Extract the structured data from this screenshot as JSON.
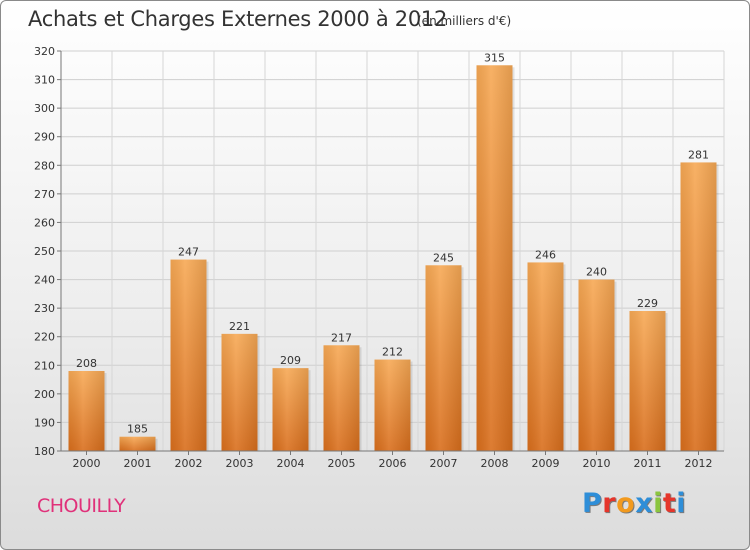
{
  "header": {
    "title": "Achats et Charges Externes 2000 à 2012",
    "subtitle": "(en milliers d'€)"
  },
  "footer": {
    "town": "CHOUILLY",
    "logo_letters": [
      "P",
      "r",
      "o",
      "x",
      "i",
      "t",
      "i"
    ],
    "logo_colors": [
      "#2e8ed8",
      "#e5352b",
      "#f29a1e",
      "#2e8ed8",
      "#8bc53f",
      "#e5352b",
      "#2e8ed8"
    ]
  },
  "chart_data": {
    "type": "bar",
    "categories": [
      "2000",
      "2001",
      "2002",
      "2003",
      "2004",
      "2005",
      "2006",
      "2007",
      "2008",
      "2009",
      "2010",
      "2011",
      "2012"
    ],
    "values": [
      208,
      185,
      247,
      221,
      209,
      217,
      212,
      245,
      315,
      246,
      240,
      229,
      281
    ],
    "title": "Achats et Charges Externes 2000 à 2012",
    "subtitle": "(en milliers d'€)",
    "ylim": [
      180,
      320
    ],
    "yticks": [
      180,
      190,
      200,
      210,
      220,
      230,
      240,
      250,
      260,
      270,
      280,
      290,
      300,
      310,
      320
    ],
    "grid": true,
    "bar_color_top": "#f7a955",
    "bar_color_bottom": "#d96e1c"
  }
}
